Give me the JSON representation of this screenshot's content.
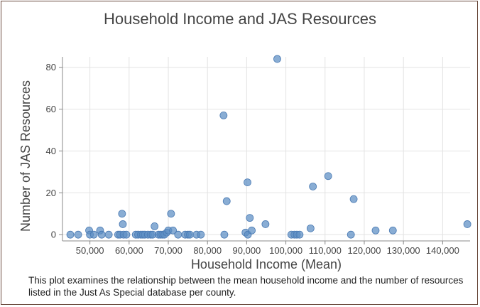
{
  "chart_data": {
    "type": "scatter",
    "title": "Household Income and JAS Resources",
    "xlabel": "Household Income (Mean)",
    "ylabel": "Number of JAS Resources",
    "xlim": [
      43000,
      147000
    ],
    "ylim": [
      -3,
      85
    ],
    "xticks": [
      50000,
      60000,
      70000,
      80000,
      90000,
      100000,
      110000,
      120000,
      130000,
      140000
    ],
    "xtick_labels": [
      "50,000",
      "60,000",
      "70,000",
      "80,000",
      "90,000",
      "100,000",
      "110,000",
      "120,000",
      "130,000",
      "140,000"
    ],
    "yticks": [
      0,
      20,
      40,
      60,
      80
    ],
    "ytick_labels": [
      "0",
      "20",
      "40",
      "60",
      "80"
    ],
    "grid": true,
    "marker_color": "#5b8dc4",
    "points": [
      {
        "x": 45000,
        "y": 0
      },
      {
        "x": 47000,
        "y": 0
      },
      {
        "x": 49800,
        "y": 2
      },
      {
        "x": 50000,
        "y": 0
      },
      {
        "x": 51000,
        "y": 0
      },
      {
        "x": 52600,
        "y": 2
      },
      {
        "x": 53000,
        "y": 0
      },
      {
        "x": 54800,
        "y": 0
      },
      {
        "x": 57200,
        "y": 0
      },
      {
        "x": 57700,
        "y": 0
      },
      {
        "x": 58200,
        "y": 10
      },
      {
        "x": 58400,
        "y": 5
      },
      {
        "x": 58600,
        "y": 0
      },
      {
        "x": 59300,
        "y": 0
      },
      {
        "x": 61700,
        "y": 0
      },
      {
        "x": 62300,
        "y": 0
      },
      {
        "x": 63000,
        "y": 0
      },
      {
        "x": 63500,
        "y": 0
      },
      {
        "x": 64000,
        "y": 0
      },
      {
        "x": 64800,
        "y": 0
      },
      {
        "x": 65500,
        "y": 0
      },
      {
        "x": 66000,
        "y": 0
      },
      {
        "x": 66500,
        "y": 4
      },
      {
        "x": 67500,
        "y": 0
      },
      {
        "x": 68000,
        "y": 0
      },
      {
        "x": 68500,
        "y": 0
      },
      {
        "x": 69000,
        "y": 0
      },
      {
        "x": 69600,
        "y": 1
      },
      {
        "x": 70000,
        "y": 2
      },
      {
        "x": 70700,
        "y": 10
      },
      {
        "x": 71200,
        "y": 2
      },
      {
        "x": 72500,
        "y": 0
      },
      {
        "x": 74300,
        "y": 0
      },
      {
        "x": 75000,
        "y": 0
      },
      {
        "x": 75500,
        "y": 0
      },
      {
        "x": 77200,
        "y": 0
      },
      {
        "x": 78300,
        "y": 0
      },
      {
        "x": 84100,
        "y": 57
      },
      {
        "x": 84300,
        "y": 0
      },
      {
        "x": 84900,
        "y": 16
      },
      {
        "x": 89700,
        "y": 1
      },
      {
        "x": 90200,
        "y": 25
      },
      {
        "x": 90300,
        "y": 0
      },
      {
        "x": 90800,
        "y": 8
      },
      {
        "x": 91300,
        "y": 2
      },
      {
        "x": 94800,
        "y": 5
      },
      {
        "x": 97800,
        "y": 84
      },
      {
        "x": 101400,
        "y": 0
      },
      {
        "x": 102200,
        "y": 0
      },
      {
        "x": 102800,
        "y": 0
      },
      {
        "x": 103500,
        "y": 0
      },
      {
        "x": 106300,
        "y": 3
      },
      {
        "x": 106900,
        "y": 23
      },
      {
        "x": 110800,
        "y": 28
      },
      {
        "x": 116600,
        "y": 0
      },
      {
        "x": 117300,
        "y": 17
      },
      {
        "x": 122900,
        "y": 2
      },
      {
        "x": 127300,
        "y": 2
      },
      {
        "x": 146300,
        "y": 5
      }
    ]
  },
  "caption": "This plot examines the relationship between the mean household income and the number of resources listed in the Just As Special database per county."
}
